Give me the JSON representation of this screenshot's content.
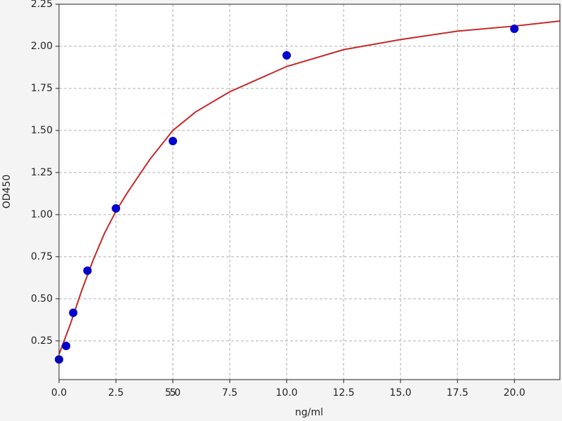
{
  "chart_data": {
    "type": "scatter",
    "xlabel": "ng/ml",
    "ylabel": "OD450",
    "xlim": [
      0,
      22
    ],
    "ylim": [
      0.02,
      2.25
    ],
    "grid": true,
    "xticks": [
      {
        "value": 0,
        "label": "0.0"
      },
      2.5,
      5,
      {
        "value": 5,
        "label": "5.0"
      },
      7.5,
      {
        "value": 10,
        "label": "10.0"
      },
      12.5,
      {
        "value": 15,
        "label": "15.0"
      },
      17.5,
      {
        "value": 20,
        "label": "20.0"
      }
    ],
    "yticks": [
      0.25,
      {
        "value": 0.5,
        "label": "0.50"
      },
      0.75,
      {
        "value": 1,
        "label": "1.00"
      },
      1.25,
      {
        "value": 1.5,
        "label": "1.50"
      },
      1.75,
      {
        "value": 2,
        "label": "2.00"
      },
      2.25
    ],
    "series": [
      {
        "type": "line",
        "color": "#c62828",
        "x": [
          0,
          0.5,
          1,
          1.5,
          2,
          2.5,
          3,
          4,
          5,
          6,
          7.5,
          10,
          12.5,
          15,
          17.5,
          20,
          22
        ],
        "y": [
          0.17,
          0.35,
          0.55,
          0.73,
          0.89,
          1.02,
          1.13,
          1.33,
          1.5,
          1.61,
          1.73,
          1.88,
          1.98,
          2.04,
          2.09,
          2.12,
          2.15
        ]
      },
      {
        "type": "scatter",
        "color": "#0000cc",
        "x": [
          0,
          0.3125,
          0.625,
          1.25,
          2.5,
          5,
          10,
          20
        ],
        "y": [
          0.14,
          0.22,
          0.417,
          0.667,
          1.037,
          1.437,
          1.946,
          2.104
        ]
      }
    ]
  }
}
